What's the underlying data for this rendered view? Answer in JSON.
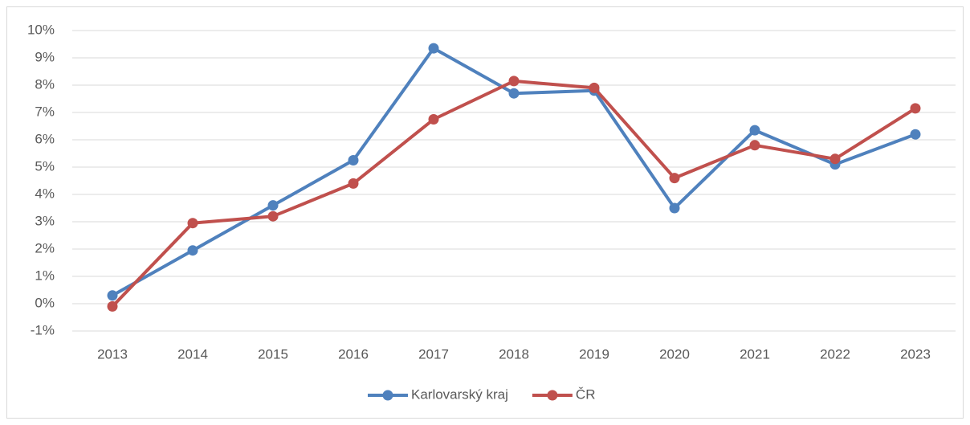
{
  "chart_data": {
    "type": "line",
    "categories": [
      "2013",
      "2014",
      "2015",
      "2016",
      "2017",
      "2018",
      "2019",
      "2020",
      "2021",
      "2022",
      "2023"
    ],
    "series": [
      {
        "name": "Karlovarský kraj",
        "color": "#4f81bd",
        "values": [
          0.3,
          1.95,
          3.6,
          5.25,
          9.35,
          7.7,
          7.8,
          3.5,
          6.35,
          5.1,
          6.2
        ]
      },
      {
        "name": "ČR",
        "color": "#c0504d",
        "values": [
          -0.1,
          2.95,
          3.2,
          4.4,
          6.75,
          8.15,
          7.9,
          4.6,
          5.8,
          5.3,
          7.15
        ]
      }
    ],
    "ylim": [
      -1,
      10
    ],
    "yticks": [
      {
        "value": -1,
        "label": "-1%"
      },
      {
        "value": 0,
        "label": "0%"
      },
      {
        "value": 1,
        "label": "1%"
      },
      {
        "value": 2,
        "label": "2%"
      },
      {
        "value": 3,
        "label": "3%"
      },
      {
        "value": 4,
        "label": "4%"
      },
      {
        "value": 5,
        "label": "5%"
      },
      {
        "value": 6,
        "label": "6%"
      },
      {
        "value": 7,
        "label": "7%"
      },
      {
        "value": 8,
        "label": "8%"
      },
      {
        "value": 9,
        "label": "9%"
      },
      {
        "value": 10,
        "label": "10%"
      }
    ],
    "grid": true,
    "legend": "bottom"
  }
}
